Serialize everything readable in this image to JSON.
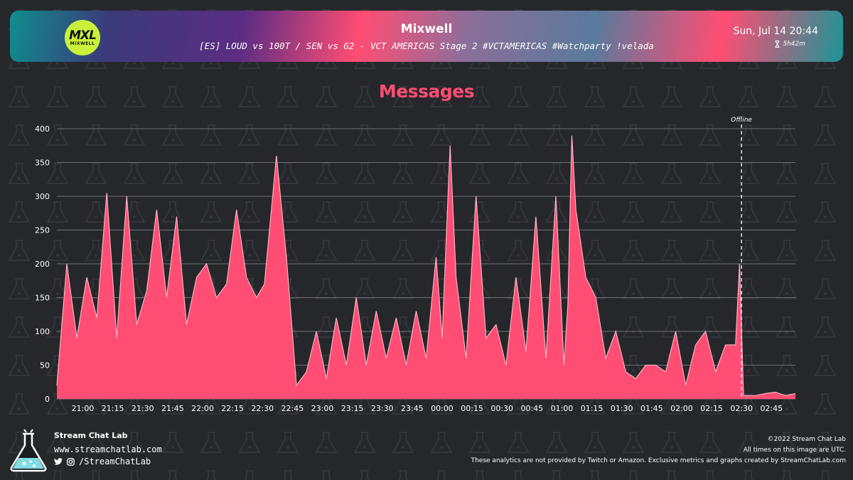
{
  "header": {
    "streamer": "Mixwell",
    "logo_text": "MXL",
    "logo_subtext": "MIXWELL",
    "stream_title": "[ES] LOUD vs 100T / SEN vs G2 - VCT AMERICAS Stage 2 #VCTAMERICAS #Watchparty !velada",
    "date": "Sun, Jul 14 20:44",
    "duration": "5h42m",
    "duration_icon": "hourglass-icon"
  },
  "colors": {
    "background": "#26272b",
    "accent": "#ff4d73",
    "line": "#ffb3c2",
    "logo": "#c9f13c"
  },
  "chart_data": {
    "type": "area",
    "title": "Messages",
    "xlabel": "",
    "ylabel": "",
    "ylim": [
      0,
      400
    ],
    "yticks": [
      0,
      50,
      100,
      150,
      200,
      250,
      300,
      350,
      400
    ],
    "xlim": [
      "20:47",
      "02:57"
    ],
    "xticks": [
      "21:00",
      "21:15",
      "21:30",
      "21:45",
      "22:00",
      "22:15",
      "22:30",
      "22:45",
      "23:00",
      "23:15",
      "23:30",
      "23:45",
      "00:00",
      "00:15",
      "00:30",
      "00:45",
      "01:00",
      "01:15",
      "01:30",
      "01:45",
      "02:00",
      "02:15",
      "02:30",
      "02:45"
    ],
    "grid": true,
    "annotations": [
      {
        "label": "Offline",
        "x": "02:30",
        "style": "dashed-vertical-line"
      }
    ],
    "series": [
      {
        "x": [
          "20:47",
          "20:52",
          "20:57",
          "21:02",
          "21:07",
          "21:12",
          "21:17",
          "21:22",
          "21:27",
          "21:32",
          "21:37",
          "21:42",
          "21:47",
          "21:52",
          "21:57",
          "22:02",
          "22:07",
          "22:12",
          "22:17",
          "22:22",
          "22:27",
          "22:31",
          "22:37",
          "22:42",
          "22:47",
          "22:52",
          "22:57",
          "23:02",
          "23:07",
          "23:12",
          "23:17",
          "23:22",
          "23:27",
          "23:32",
          "23:37",
          "23:42",
          "23:47",
          "23:52",
          "23:57",
          "00:00",
          "00:04",
          "00:07",
          "00:12",
          "00:17",
          "00:22",
          "00:27",
          "00:32",
          "00:37",
          "00:42",
          "00:47",
          "00:52",
          "00:57",
          "01:01",
          "01:03",
          "01:05",
          "01:07",
          "01:12",
          "01:17",
          "01:22",
          "01:27",
          "01:32",
          "01:37",
          "01:42",
          "01:47",
          "01:52",
          "01:57",
          "02:02",
          "02:07",
          "02:12",
          "02:17",
          "02:22",
          "02:27",
          "02:29",
          "02:31",
          "02:37",
          "02:42",
          "02:47",
          "02:52",
          "02:57"
        ],
        "values": [
          20,
          200,
          90,
          180,
          120,
          305,
          90,
          300,
          110,
          160,
          280,
          150,
          270,
          110,
          180,
          200,
          150,
          170,
          280,
          180,
          150,
          170,
          360,
          210,
          20,
          40,
          100,
          30,
          120,
          50,
          150,
          50,
          130,
          60,
          120,
          50,
          130,
          60,
          210,
          90,
          375,
          180,
          60,
          300,
          90,
          110,
          50,
          180,
          70,
          270,
          60,
          300,
          50,
          140,
          390,
          280,
          180,
          150,
          60,
          100,
          40,
          30,
          50,
          50,
          40,
          100,
          20,
          80,
          100,
          40,
          80,
          80,
          200,
          5,
          5,
          8,
          10,
          5,
          8
        ]
      }
    ]
  },
  "footer": {
    "brand": "Stream Chat Lab",
    "url": "www.streamchatlab.com",
    "social_handle": "/StreamChatLab",
    "copyright": "©2022 Stream Chat Lab",
    "utc_note": "All times on this image are UTC.",
    "disclaimer": "These analytics are not provided by Twitch or Amazon. Exclusive metrics and graphs created by StreamChatLab.com"
  }
}
